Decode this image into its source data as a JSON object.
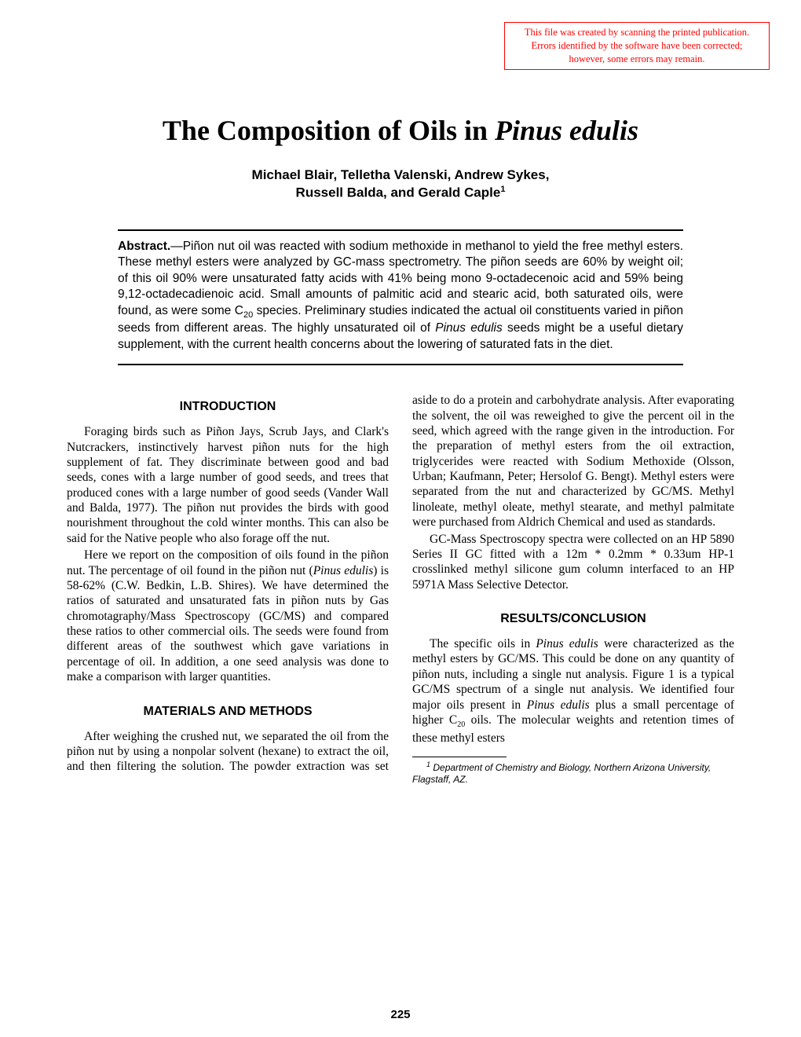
{
  "notice": {
    "line1": "This file was created by scanning the printed publication.",
    "line2": "Errors identified by the software have been corrected;",
    "line3": "however, some errors may remain.",
    "border_color": "#ff0000",
    "text_color": "#ff0000"
  },
  "title": {
    "prefix": "The Composition of Oils in ",
    "species": "Pinus edulis",
    "fontsize": 36
  },
  "authors": {
    "line1": "Michael Blair, Telletha Valenski, Andrew Sykes,",
    "line2_prefix": "Russell Balda, and Gerald Caple",
    "super": "1",
    "fontsize": 17
  },
  "abstract": {
    "label": "Abstract.",
    "text_pre": "—Piñon nut oil was reacted with sodium methoxide in methanol to yield the free methyl esters. These methyl esters were analyzed by GC-mass spectrometry. The piñon seeds are 60% by weight oil; of this oil 90% were unsaturated fatty acids with 41% being mono 9-octadecenoic acid and 59% being 9,12-octadecadienoic acid. Small amounts of palmitic acid and stearic acid, both saturated oils, were found, as were some C",
    "sub": "20",
    "text_mid": " species. Preliminary studies indicated the actual oil constituents varied in piñon seeds from different areas. The highly unsaturated oil of ",
    "species": "Pinus edulis",
    "text_post": " seeds might be a useful dietary supplement, with the current health concerns about the lowering of saturated fats in the diet.",
    "fontsize": 15.5
  },
  "sections": {
    "intro_heading": "INTRODUCTION",
    "intro_p1": "Foraging birds such as Piñon Jays, Scrub Jays, and Clark's Nutcrackers, instinctively harvest piñon nuts for the high supplement of fat. They discriminate between good and bad seeds, cones with a large number of good seeds, and trees that produced cones with a large number of good seeds (Vander Wall and Balda, 1977). The piñon nut provides the birds with good nourishment throughout the cold winter months. This can also be said for the Native people who also forage off the nut.",
    "intro_p2_pre": "Here we report on the composition of oils found in the piñon nut. The percentage of oil found in the piñon nut (",
    "intro_p2_species": "Pinus edulis",
    "intro_p2_post": ") is 58-62% (C.W. Bedkin, L.B. Shires). We have determined the ratios of saturated and unsaturated fats in piñon nuts by Gas chromotagraphy/Mass Spectroscopy (GC/MS) and compared these ratios to other commercial oils. The seeds were found from different areas of the southwest which gave variations in percentage of oil. In addition, a one seed analysis was done to make a comparison with larger quantities.",
    "methods_heading": "MATERIALS AND METHODS",
    "methods_p1": "After weighing the crushed nut, we separated the oil from the piñon nut by using a nonpolar solvent (hexane) to extract the oil, and then filtering the solution. The powder extraction was set aside to do a protein and carbohydrate analysis. After evaporating the solvent, the oil was reweighed to give the percent oil in the seed, which agreed with the range given in the introduction. For the preparation of methyl esters from the oil extraction, triglycerides were reacted with Sodium Methoxide (Olsson, Urban; Kaufmann, Peter; Hersolof G. Bengt). Methyl esters were separated from the nut and characterized by GC/MS. Methyl linoleate, methyl oleate, methyl stearate, and methyl palmitate were purchased from Aldrich Chemical and used as standards.",
    "methods_p2": "GC-Mass Spectroscopy spectra were collected on an HP 5890 Series II GC fitted with a 12m * 0.2mm * 0.33um HP-1 crosslinked methyl silicone gum column interfaced to an HP 5971A Mass Selective Detector.",
    "results_heading": "RESULTS/CONCLUSION",
    "results_p1_pre": "The specific oils in ",
    "results_p1_sp1": "Pinus edulis",
    "results_p1_mid": " were characterized as the methyl esters by GC/MS. This could be done on any quantity of piñon nuts, including a single nut analysis. Figure 1 is a typical GC/MS spectrum of a single nut analysis. We identified four major oils present in ",
    "results_p1_sp2": "Pinus edulis",
    "results_p1_mid2": " plus a small percentage of higher C",
    "results_p1_sub": "20",
    "results_p1_post": " oils. The molecular weights and retention times of these methyl esters"
  },
  "footnote": {
    "super": "1",
    "text": " Department of Chemistry and Biology, Northern Arizona University, Flagstaff, AZ."
  },
  "page_number": "225",
  "colors": {
    "background": "#ffffff",
    "text": "#000000",
    "rule": "#000000"
  },
  "typography": {
    "body_font": "Palatino Linotype",
    "sans_font": "Arial",
    "body_fontsize": 15.5,
    "heading_fontsize": 16,
    "footnote_fontsize": 12
  }
}
